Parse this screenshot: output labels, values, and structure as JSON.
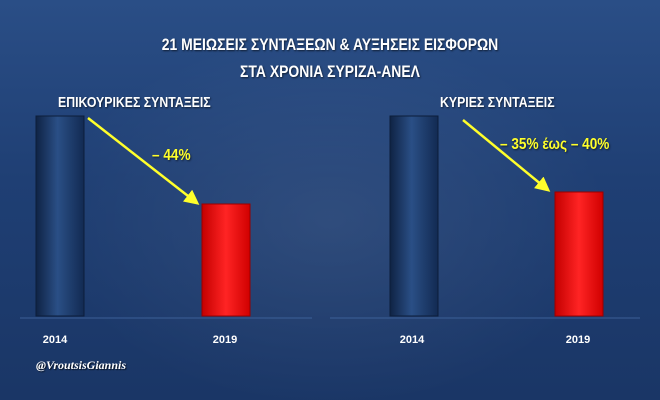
{
  "colors": {
    "background": "#1f3f74",
    "bar_2014": "#1d3c6b",
    "bar_2019": "#ff1a1a",
    "annotation": "#ffff2b",
    "text": "#ffffff"
  },
  "title": {
    "line1": "21 ΜΕΙΩΣΕΙΣ ΣΥΝΤΑΞΕΩΝ & ΑΥΞΗΣΕΙΣ ΕΙΣΦΟΡΩΝ",
    "line2": "ΣΤΑ ΧΡΟΝΙΑ ΣΥΡΙΖΑ-ΑΝΕΛ"
  },
  "watermark": "@VroutsisGiannis",
  "chart_data": [
    {
      "type": "bar",
      "title": "ΕΠΙΚΟΥΡΙΚΕΣ ΣΥΝΤΑΞΕΙΣ",
      "categories": [
        "2014",
        "2019"
      ],
      "values": [
        100,
        56
      ],
      "annotation": "– 44%",
      "ylim": [
        0,
        100
      ],
      "grid": false,
      "legend": "none"
    },
    {
      "type": "bar",
      "title": "ΚΥΡΙΕΣ ΣΥΝΤΑΞΕΙΣ",
      "categories": [
        "2014",
        "2019"
      ],
      "values": [
        100,
        62
      ],
      "annotation": "– 35% έως – 40%",
      "ylim": [
        0,
        100
      ],
      "grid": false,
      "legend": "none"
    }
  ]
}
